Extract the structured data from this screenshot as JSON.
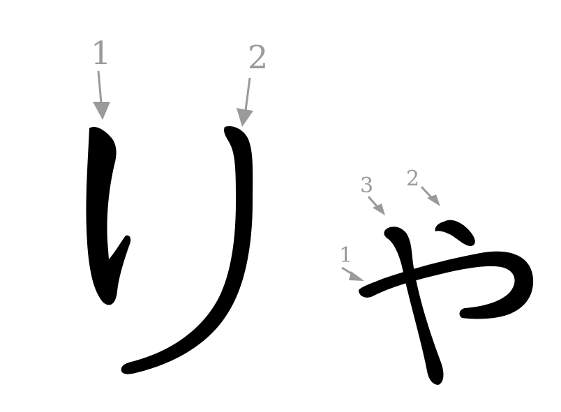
{
  "colors": {
    "ink": "#000000",
    "annotation": "#9a9a9a",
    "background": "#ffffff"
  },
  "characters": [
    {
      "glyph": "り",
      "strokes": [
        {
          "order": "1"
        },
        {
          "order": "2"
        }
      ]
    },
    {
      "glyph": "ゃ",
      "strokes": [
        {
          "order": "1"
        },
        {
          "order": "2"
        },
        {
          "order": "3"
        }
      ]
    }
  ]
}
